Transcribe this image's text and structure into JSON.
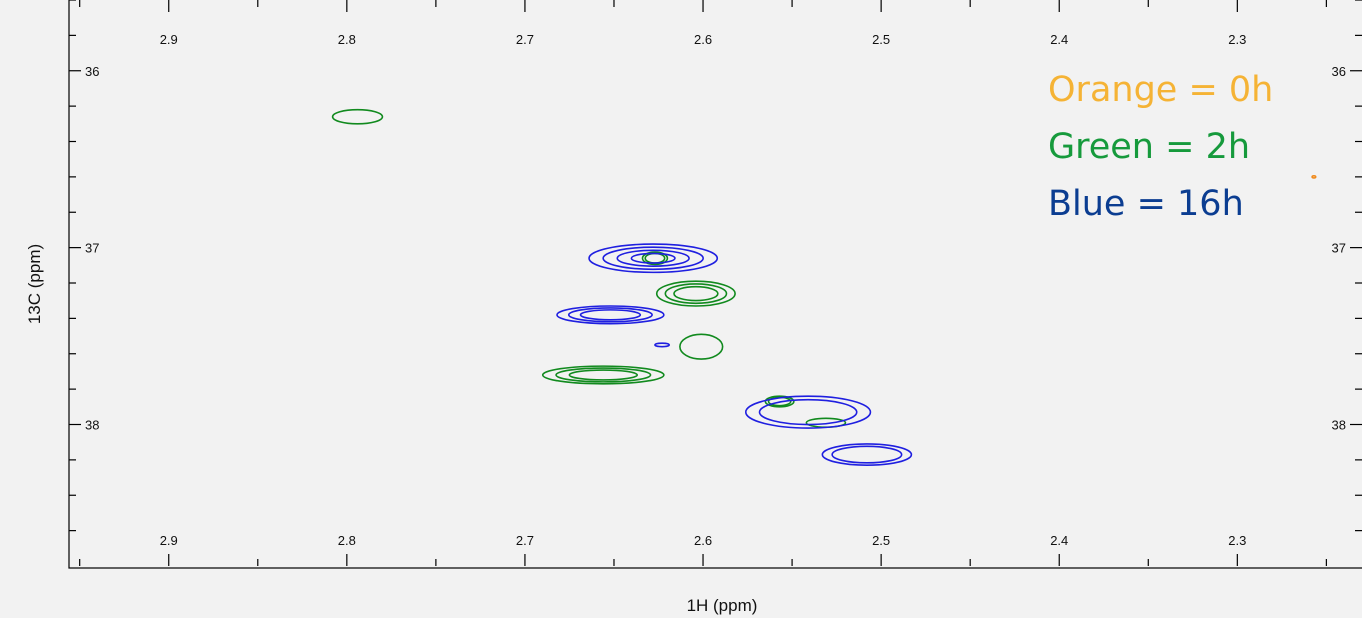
{
  "chart_data": {
    "type": "contour",
    "xlabel": "1H (ppm)",
    "ylabel": "13C (ppm)",
    "xlim": [
      2.956,
      2.23
    ],
    "ylim": [
      38.8,
      35.6
    ],
    "x_reversed": true,
    "y_reversed": true,
    "x_ticks": [
      "2.9",
      "2.8",
      "2.7",
      "2.6",
      "2.5",
      "2.4",
      "2.3"
    ],
    "y_ticks": [
      "36",
      "37",
      "38"
    ],
    "legend": [
      {
        "label": "Orange = 0h",
        "color": "#f5b335"
      },
      {
        "label": "Green = 2h",
        "color": "#169a3c"
      },
      {
        "label": "Blue = 16h",
        "color": "#0b3d91"
      }
    ],
    "series": [
      {
        "name": "Green = 2h",
        "color": "#118a1e",
        "peaks": [
          {
            "x": 2.794,
            "y": 36.26,
            "rx": 0.014,
            "ry": 0.04,
            "levels": 1
          },
          {
            "x": 2.627,
            "y": 37.06,
            "rx": 0.007,
            "ry": 0.035,
            "levels": 2
          },
          {
            "x": 2.604,
            "y": 37.26,
            "rx": 0.022,
            "ry": 0.07,
            "levels": 3
          },
          {
            "x": 2.601,
            "y": 37.56,
            "rx": 0.012,
            "ry": 0.07,
            "levels": 1
          },
          {
            "x": 2.656,
            "y": 37.72,
            "rx": 0.034,
            "ry": 0.05,
            "levels": 3
          },
          {
            "x": 2.557,
            "y": 37.87,
            "rx": 0.008,
            "ry": 0.03,
            "levels": 2
          },
          {
            "x": 2.531,
            "y": 37.99,
            "rx": 0.011,
            "ry": 0.025,
            "levels": 1
          }
        ]
      },
      {
        "name": "Blue = 16h",
        "color": "#1f1fe0",
        "peaks": [
          {
            "x": 2.628,
            "y": 37.06,
            "rx": 0.036,
            "ry": 0.08,
            "levels": 4
          },
          {
            "x": 2.652,
            "y": 37.38,
            "rx": 0.03,
            "ry": 0.05,
            "levels": 3
          },
          {
            "x": 2.623,
            "y": 37.55,
            "rx": 0.004,
            "ry": 0.01,
            "levels": 1
          },
          {
            "x": 2.508,
            "y": 38.17,
            "rx": 0.025,
            "ry": 0.06,
            "levels": 2
          },
          {
            "x": 2.541,
            "y": 37.93,
            "rx": 0.035,
            "ry": 0.09,
            "levels": 2
          }
        ]
      },
      {
        "name": "Orange = 0h",
        "color": "#f08a1c",
        "peaks": [
          {
            "x": 2.257,
            "y": 36.6,
            "rx": 0.001,
            "ry": 0.006,
            "levels": 1
          }
        ]
      }
    ]
  }
}
